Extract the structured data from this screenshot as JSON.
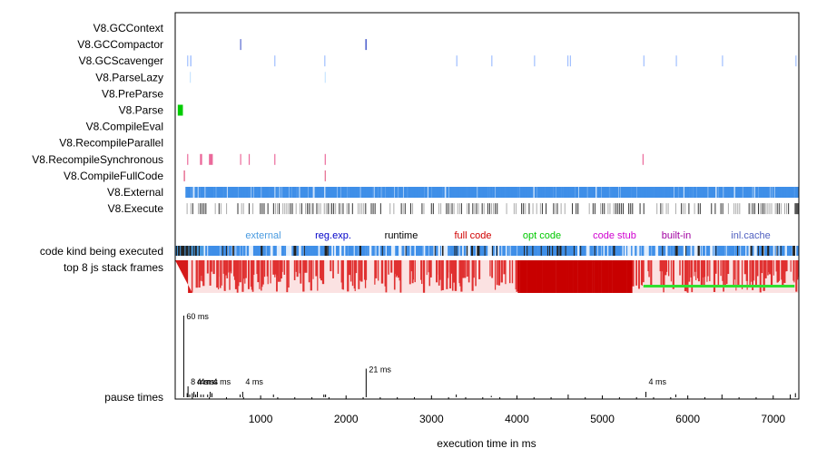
{
  "chart_data": {
    "type": "timeline",
    "xlabel": "execution time in ms",
    "xlim": [
      0,
      7300
    ],
    "xticks": [
      1000,
      2000,
      3000,
      4000,
      5000,
      6000,
      7000
    ],
    "tracks": [
      {
        "name": "V8.GCContext",
        "color": "#3b4fc8",
        "events": []
      },
      {
        "name": "V8.GCCompactor",
        "color": "#3b4fc8",
        "events": [
          [
            760,
            10
          ],
          [
            2225,
            18
          ]
        ]
      },
      {
        "name": "V8.GCScavenger",
        "color": "#8fb4ff",
        "events": [
          [
            140,
            8
          ],
          [
            175,
            15
          ],
          [
            1160,
            6
          ],
          [
            1745,
            10
          ],
          [
            3290,
            8
          ],
          [
            3700,
            8
          ],
          [
            4200,
            8
          ],
          [
            4590,
            10
          ],
          [
            4620,
            8
          ],
          [
            5480,
            8
          ],
          [
            5860,
            10
          ],
          [
            6400,
            8
          ],
          [
            7260,
            10
          ]
        ]
      },
      {
        "name": "V8.ParseLazy",
        "color": "#bfe0ff",
        "events": [
          [
            170,
            10
          ],
          [
            1750,
            6
          ]
        ]
      },
      {
        "name": "V8.PreParse",
        "color": "#bfe0ff",
        "events": []
      },
      {
        "name": "V8.Parse",
        "color": "#00cc00",
        "events": [
          [
            30,
            60
          ]
        ]
      },
      {
        "name": "V8.CompileEval",
        "color": "#ff8a8a",
        "events": []
      },
      {
        "name": "V8.RecompileParallel",
        "color": "#ff8a8a",
        "events": []
      },
      {
        "name": "V8.RecompileSynchronous",
        "color": "#e8508a",
        "events": [
          [
            140,
            8
          ],
          [
            290,
            25
          ],
          [
            395,
            45
          ],
          [
            760,
            10
          ],
          [
            860,
            8
          ],
          [
            1160,
            12
          ],
          [
            1750,
            6
          ],
          [
            5470,
            10
          ]
        ]
      },
      {
        "name": "V8.CompileFullCode",
        "color": "#e0507a",
        "events": [
          [
            100,
            15
          ],
          [
            1750,
            8
          ]
        ]
      }
    ],
    "external_track": {
      "name": "V8.External",
      "color": "#3f8fe8",
      "range": [
        120,
        7280
      ]
    },
    "execute_track": {
      "name": "V8.Execute",
      "color": "#555555",
      "range": [
        90,
        7300
      ]
    },
    "code_kinds": [
      {
        "label": "external",
        "color": "#4a9be0"
      },
      {
        "label": "reg.exp.",
        "color": "#0000c8"
      },
      {
        "label": "runtime",
        "color": "#000000"
      },
      {
        "label": "full code",
        "color": "#d00000"
      },
      {
        "label": "opt code",
        "color": "#00c800"
      },
      {
        "label": "code stub",
        "color": "#d000d0"
      },
      {
        "label": "built-in",
        "color": "#a000a0"
      },
      {
        "label": "inl.cache",
        "color": "#5060c0"
      }
    ],
    "code_kind_row": "code kind being executed",
    "stack_row": "top 8 js stack frames",
    "pause_row": "pause times",
    "pause_peaks": [
      {
        "x": 100,
        "ms": 60,
        "label": "60 ms"
      },
      {
        "x": 150,
        "ms": 8,
        "label": "8 ms"
      },
      {
        "x": 220,
        "ms": 4,
        "label": "4 ms"
      },
      {
        "x": 260,
        "ms": 4,
        "label": "4 ms"
      },
      {
        "x": 410,
        "ms": 4,
        "label": "4 ms"
      },
      {
        "x": 790,
        "ms": 4,
        "label": "4 ms"
      },
      {
        "x": 2235,
        "ms": 21,
        "label": "21 ms"
      },
      {
        "x": 5510,
        "ms": 4,
        "label": "4 ms"
      }
    ],
    "pause_ticks": [
      [
        140,
        3
      ],
      [
        170,
        2
      ],
      [
        200,
        3
      ],
      [
        240,
        2
      ],
      [
        300,
        2
      ],
      [
        330,
        2
      ],
      [
        380,
        2
      ],
      [
        430,
        3
      ],
      [
        760,
        2
      ],
      [
        1150,
        2
      ],
      [
        1740,
        2
      ],
      [
        1760,
        2
      ],
      [
        3290,
        2
      ],
      [
        3700,
        1
      ],
      [
        4600,
        2
      ],
      [
        5860,
        2
      ],
      [
        6400,
        2
      ],
      [
        7200,
        2
      ],
      [
        7260,
        3
      ]
    ]
  }
}
